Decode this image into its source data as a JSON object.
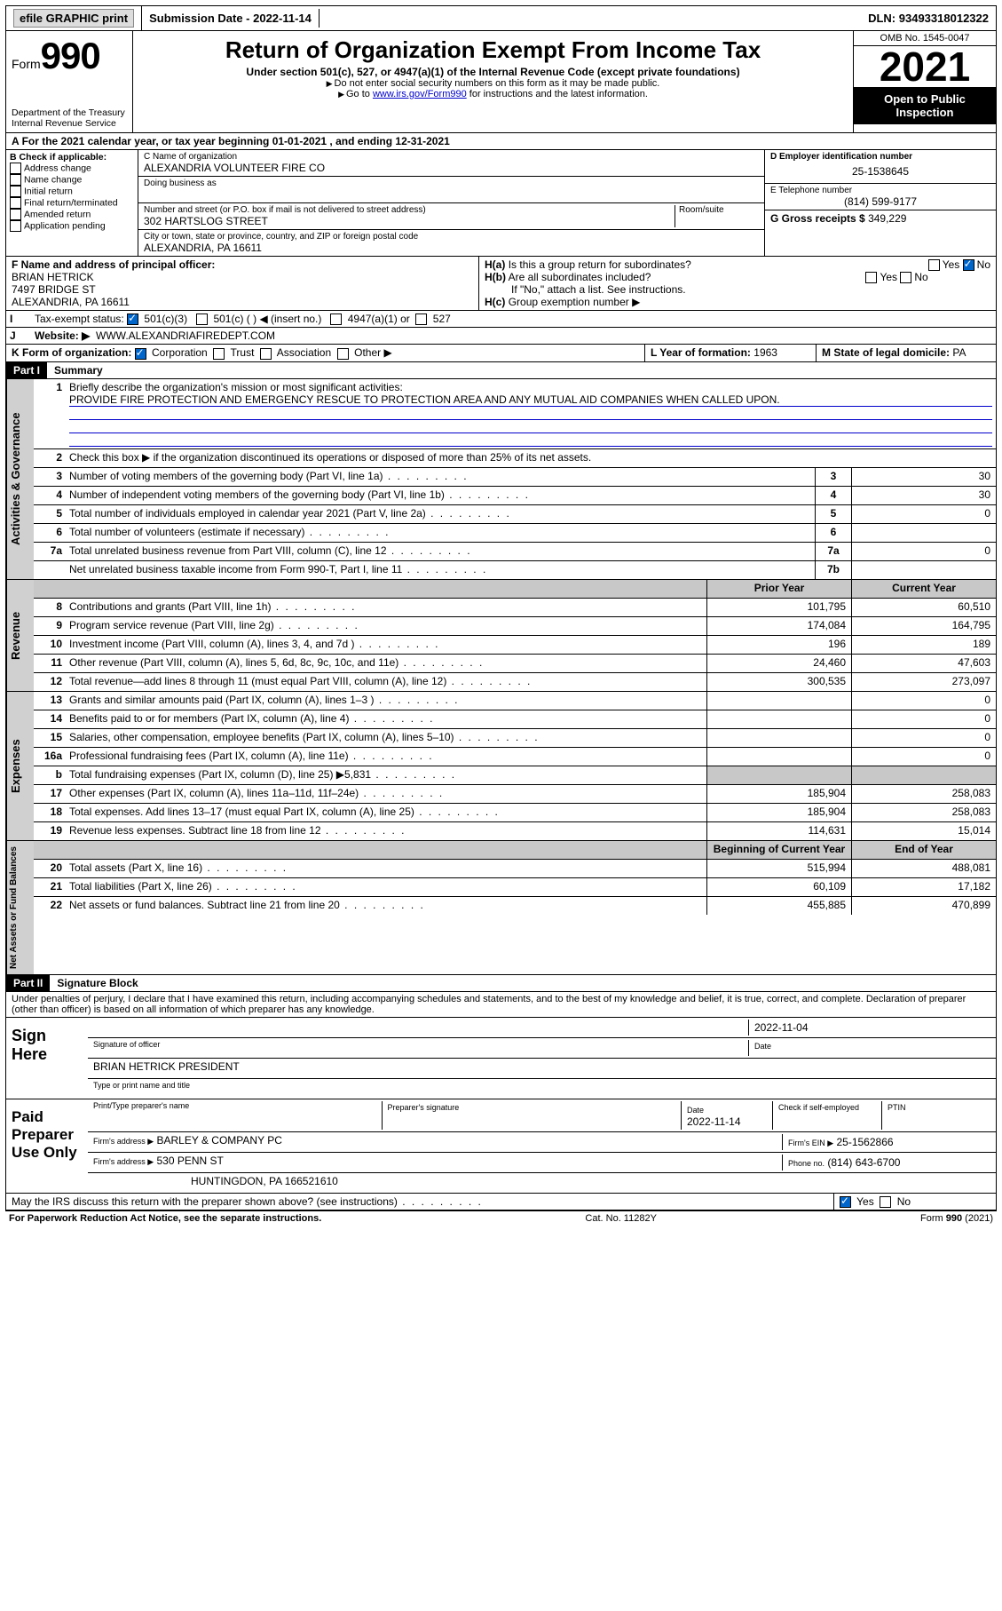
{
  "topbar": {
    "efile": "efile GRAPHIC print",
    "subdate_label": "Submission Date - ",
    "subdate": "2022-11-14",
    "dln_label": "DLN: ",
    "dln": "93493318012322"
  },
  "header": {
    "form_word": "Form",
    "form_num": "990",
    "dept": "Department of the Treasury\nInternal Revenue Service",
    "title": "Return of Organization Exempt From Income Tax",
    "sub": "Under section 501(c), 527, or 4947(a)(1) of the Internal Revenue Code (except private foundations)",
    "note1": "Do not enter social security numbers on this form as it may be made public.",
    "note2_pre": "Go to ",
    "note2_link": "www.irs.gov/Form990",
    "note2_post": " for instructions and the latest information.",
    "omb": "OMB No. 1545-0047",
    "year": "2021",
    "open": "Open to Public Inspection"
  },
  "A": {
    "text_pre": "For the 2021 calendar year, or tax year beginning ",
    "begin": "01-01-2021",
    "mid": " , and ending ",
    "end": "12-31-2021"
  },
  "B": {
    "label": "B Check if applicable:",
    "opts": [
      "Address change",
      "Name change",
      "Initial return",
      "Final return/terminated",
      "Amended return",
      "Application pending"
    ]
  },
  "C": {
    "name_lbl": "C Name of organization",
    "name": "ALEXANDRIA VOLUNTEER FIRE CO",
    "dba_lbl": "Doing business as",
    "street_lbl": "Number and street (or P.O. box if mail is not delivered to street address)",
    "room_lbl": "Room/suite",
    "street": "302 HARTSLOG STREET",
    "city_lbl": "City or town, state or province, country, and ZIP or foreign postal code",
    "city": "ALEXANDRIA, PA  16611"
  },
  "D": {
    "lbl": "D Employer identification number",
    "val": "25-1538645"
  },
  "E": {
    "lbl": "E Telephone number",
    "val": "(814) 599-9177"
  },
  "G": {
    "lbl": "G Gross receipts $",
    "val": "349,229"
  },
  "F": {
    "lbl": "F  Name and address of principal officer:",
    "name": "BRIAN HETRICK",
    "addr1": "7497 BRIDGE ST",
    "addr2": "ALEXANDRIA, PA  16611"
  },
  "H": {
    "a": "Is this a group return for subordinates?",
    "b": "Are all subordinates included?",
    "b_note": "If \"No,\" attach a list. See instructions.",
    "c": "Group exemption number ▶",
    "yes": "Yes",
    "no": "No"
  },
  "I": {
    "lbl": "Tax-exempt status:",
    "o1": "501(c)(3)",
    "o2": "501(c) (  ) ◀ (insert no.)",
    "o3": "4947(a)(1) or",
    "o4": "527"
  },
  "J": {
    "lbl": "Website: ▶",
    "val": "WWW.ALEXANDRIAFIREDEPT.COM"
  },
  "K": {
    "lbl": "K Form of organization:",
    "o1": "Corporation",
    "o2": "Trust",
    "o3": "Association",
    "o4": "Other ▶"
  },
  "L": {
    "lbl": "L Year of formation:",
    "val": "1963"
  },
  "M": {
    "lbl": "M State of legal domicile:",
    "val": "PA"
  },
  "part1": {
    "hdr": "Part I",
    "title": "Summary",
    "l1": "Briefly describe the organization's mission or most significant activities:",
    "l1v": "PROVIDE FIRE PROTECTION AND EMERGENCY RESCUE TO PROTECTION AREA AND ANY MUTUAL AID COMPANIES WHEN CALLED UPON.",
    "l2": "Check this box ▶        if the organization discontinued its operations or disposed of more than 25% of its net assets.",
    "rows_gov": [
      {
        "n": "3",
        "t": "Number of voting members of the governing body (Part VI, line 1a)",
        "rn": "3",
        "v": "30"
      },
      {
        "n": "4",
        "t": "Number of independent voting members of the governing body (Part VI, line 1b)",
        "rn": "4",
        "v": "30"
      },
      {
        "n": "5",
        "t": "Total number of individuals employed in calendar year 2021 (Part V, line 2a)",
        "rn": "5",
        "v": "0"
      },
      {
        "n": "6",
        "t": "Total number of volunteers (estimate if necessary)",
        "rn": "6",
        "v": ""
      },
      {
        "n": "7a",
        "t": "Total unrelated business revenue from Part VIII, column (C), line 12",
        "rn": "7a",
        "v": "0"
      },
      {
        "n": "",
        "t": "Net unrelated business taxable income from Form 990-T, Part I, line 11",
        "rn": "7b",
        "v": ""
      }
    ],
    "col_py": "Prior Year",
    "col_cy": "Current Year",
    "rows_rev": [
      {
        "n": "8",
        "t": "Contributions and grants (Part VIII, line 1h)",
        "py": "101,795",
        "cy": "60,510"
      },
      {
        "n": "9",
        "t": "Program service revenue (Part VIII, line 2g)",
        "py": "174,084",
        "cy": "164,795"
      },
      {
        "n": "10",
        "t": "Investment income (Part VIII, column (A), lines 3, 4, and 7d )",
        "py": "196",
        "cy": "189"
      },
      {
        "n": "11",
        "t": "Other revenue (Part VIII, column (A), lines 5, 6d, 8c, 9c, 10c, and 11e)",
        "py": "24,460",
        "cy": "47,603"
      },
      {
        "n": "12",
        "t": "Total revenue—add lines 8 through 11 (must equal Part VIII, column (A), line 12)",
        "py": "300,535",
        "cy": "273,097"
      }
    ],
    "rows_exp": [
      {
        "n": "13",
        "t": "Grants and similar amounts paid (Part IX, column (A), lines 1–3 )",
        "py": "",
        "cy": "0"
      },
      {
        "n": "14",
        "t": "Benefits paid to or for members (Part IX, column (A), line 4)",
        "py": "",
        "cy": "0"
      },
      {
        "n": "15",
        "t": "Salaries, other compensation, employee benefits (Part IX, column (A), lines 5–10)",
        "py": "",
        "cy": "0"
      },
      {
        "n": "16a",
        "t": "Professional fundraising fees (Part IX, column (A), line 11e)",
        "py": "",
        "cy": "0"
      },
      {
        "n": "b",
        "t": "Total fundraising expenses (Part IX, column (D), line 25) ▶5,831",
        "py": "GREY",
        "cy": "GREY"
      },
      {
        "n": "17",
        "t": "Other expenses (Part IX, column (A), lines 11a–11d, 11f–24e)",
        "py": "185,904",
        "cy": "258,083"
      },
      {
        "n": "18",
        "t": "Total expenses. Add lines 13–17 (must equal Part IX, column (A), line 25)",
        "py": "185,904",
        "cy": "258,083"
      },
      {
        "n": "19",
        "t": "Revenue less expenses. Subtract line 18 from line 12",
        "py": "114,631",
        "cy": "15,014"
      }
    ],
    "col_boy": "Beginning of Current Year",
    "col_eoy": "End of Year",
    "rows_net": [
      {
        "n": "20",
        "t": "Total assets (Part X, line 16)",
        "py": "515,994",
        "cy": "488,081"
      },
      {
        "n": "21",
        "t": "Total liabilities (Part X, line 26)",
        "py": "60,109",
        "cy": "17,182"
      },
      {
        "n": "22",
        "t": "Net assets or fund balances. Subtract line 21 from line 20",
        "py": "455,885",
        "cy": "470,899"
      }
    ]
  },
  "part2": {
    "hdr": "Part II",
    "title": "Signature Block",
    "decl": "Under penalties of perjury, I declare that I have examined this return, including accompanying schedules and statements, and to the best of my knowledge and belief, it is true, correct, and complete. Declaration of preparer (other than officer) is based on all information of which preparer has any knowledge."
  },
  "sign": {
    "here": "Sign Here",
    "sig_officer": "Signature of officer",
    "date": "Date",
    "date_v": "2022-11-04",
    "name": "BRIAN HETRICK PRESIDENT",
    "name_lbl": "Type or print name and title"
  },
  "paid": {
    "title": "Paid Preparer Use Only",
    "c1": "Print/Type preparer's name",
    "c2": "Preparer's signature",
    "c3": "Date",
    "c3v": "2022-11-14",
    "c4": "Check        if self-employed",
    "c5": "PTIN",
    "firm_lbl": "Firm's name    ▶",
    "firm": "BARLEY & COMPANY PC",
    "ein_lbl": "Firm's EIN ▶",
    "ein": "25-1562866",
    "addr_lbl": "Firm's address ▶",
    "addr1": "530 PENN ST",
    "addr2": "HUNTINGDON, PA  166521610",
    "phone_lbl": "Phone no.",
    "phone": "(814) 643-6700"
  },
  "may": {
    "q": "May the IRS discuss this return with the preparer shown above? (see instructions)",
    "yes": "Yes",
    "no": "No"
  },
  "footer": {
    "l": "For Paperwork Reduction Act Notice, see the separate instructions.",
    "m": "Cat. No. 11282Y",
    "r": "Form 990 (2021)"
  },
  "vtabs": {
    "gov": "Activities & Governance",
    "rev": "Revenue",
    "exp": "Expenses",
    "net": "Net Assets or Fund Balances"
  }
}
